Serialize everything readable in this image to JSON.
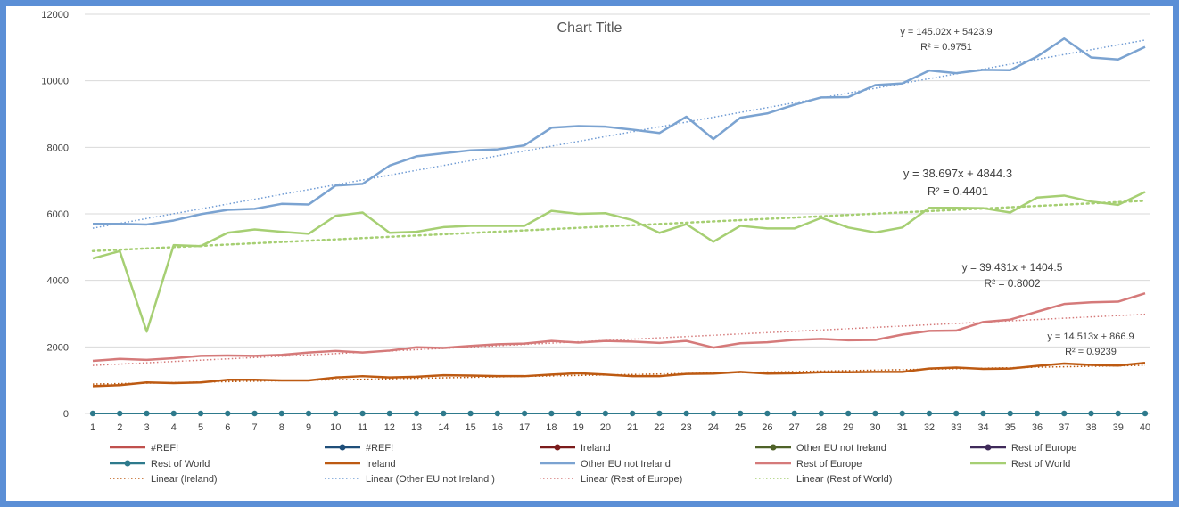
{
  "chart_data": {
    "type": "line",
    "title": "Chart Title",
    "xlabel": "",
    "ylabel": "",
    "x": [
      1,
      2,
      3,
      4,
      5,
      6,
      7,
      8,
      9,
      10,
      11,
      12,
      13,
      14,
      15,
      16,
      17,
      18,
      19,
      20,
      21,
      22,
      23,
      24,
      25,
      26,
      27,
      28,
      29,
      30,
      31,
      32,
      33,
      34,
      35,
      36,
      37,
      38,
      39,
      40
    ],
    "x_ticks": [
      "1",
      "2",
      "3",
      "4",
      "5",
      "6",
      "7",
      "8",
      "9",
      "10",
      "11",
      "12",
      "13",
      "14",
      "15",
      "16",
      "17",
      "18",
      "19",
      "20",
      "21",
      "22",
      "23",
      "24",
      "25",
      "26",
      "27",
      "28",
      "29",
      "30",
      "31",
      "32",
      "33",
      "34",
      "35",
      "36",
      "37",
      "38",
      "39",
      "40"
    ],
    "ylim": [
      0,
      12000
    ],
    "y_ticks": [
      "0",
      "2000",
      "4000",
      "6000",
      "8000",
      "10000",
      "12000"
    ],
    "grid": true,
    "legend_position": "bottom",
    "series": [
      {
        "name": "Other EU not Ireland",
        "color": "#7ba3d1",
        "marker": false,
        "width": 2.5,
        "values": [
          5700,
          5700,
          5680,
          5800,
          5990,
          6120,
          6150,
          6300,
          6280,
          6850,
          6900,
          7450,
          7730,
          7820,
          7910,
          7940,
          8060,
          8590,
          8640,
          8620,
          8530,
          8430,
          8920,
          8250,
          8890,
          9020,
          9280,
          9500,
          9510,
          9870,
          9920,
          10310,
          10230,
          10330,
          10320,
          10730,
          11270,
          10700,
          10640,
          11020
        ]
      },
      {
        "name": "Rest of World",
        "color": "#a6cf73",
        "marker": false,
        "width": 2.5,
        "values": [
          4660,
          4880,
          2460,
          5060,
          5030,
          5430,
          5530,
          5460,
          5400,
          5940,
          6040,
          5430,
          5460,
          5600,
          5640,
          5640,
          5640,
          6090,
          6000,
          6020,
          5810,
          5430,
          5690,
          5160,
          5640,
          5560,
          5560,
          5880,
          5590,
          5440,
          5590,
          6180,
          6180,
          6170,
          6040,
          6490,
          6550,
          6370,
          6270,
          6660
        ]
      },
      {
        "name": "Rest of Europe",
        "color": "#d57a7a",
        "marker": false,
        "width": 2.5,
        "values": [
          1580,
          1640,
          1610,
          1660,
          1730,
          1740,
          1730,
          1760,
          1830,
          1880,
          1830,
          1890,
          1990,
          1970,
          2030,
          2080,
          2100,
          2180,
          2130,
          2180,
          2160,
          2120,
          2180,
          1980,
          2110,
          2140,
          2210,
          2240,
          2200,
          2210,
          2370,
          2480,
          2490,
          2750,
          2820,
          3060,
          3290,
          3340,
          3360,
          3610
        ]
      },
      {
        "name": "Ireland",
        "color": "#bd5a12",
        "marker": false,
        "width": 2.5,
        "values": [
          820,
          850,
          930,
          910,
          930,
          1010,
          1010,
          990,
          990,
          1080,
          1120,
          1080,
          1100,
          1150,
          1140,
          1120,
          1120,
          1170,
          1210,
          1170,
          1120,
          1120,
          1190,
          1200,
          1250,
          1200,
          1210,
          1240,
          1240,
          1250,
          1250,
          1350,
          1380,
          1340,
          1350,
          1430,
          1500,
          1460,
          1440,
          1520
        ]
      },
      {
        "name": "Rest of World",
        "color": "#2e7a8c",
        "marker": true,
        "width": 2,
        "values": [
          0,
          0,
          0,
          0,
          0,
          0,
          0,
          0,
          0,
          0,
          0,
          0,
          0,
          0,
          0,
          0,
          0,
          0,
          0,
          0,
          0,
          0,
          0,
          0,
          0,
          0,
          0,
          0,
          0,
          0,
          0,
          0,
          0,
          0,
          0,
          0,
          0,
          0,
          0,
          0
        ]
      }
    ],
    "trendlines": [
      {
        "name": "Linear (Other EU not Ireland )",
        "color": "#6f9bd4",
        "style": "dotted",
        "slope": 145.02,
        "intercept": 5423.9,
        "equation": "y = 145.02x + 5423.9",
        "r2": "R² = 0.9751"
      },
      {
        "name": "Linear (Rest of World)",
        "color": "#a6cf73",
        "style": "dotted-heavy",
        "slope": 38.697,
        "intercept": 4844.3,
        "equation": "y = 38.697x + 4844.3",
        "r2": "R² = 0.4401"
      },
      {
        "name": "Linear (Rest of Europe)",
        "color": "#d57a7a",
        "style": "dotted",
        "slope": 39.431,
        "intercept": 1404.5,
        "equation": "y = 39.431x + 1404.5",
        "r2": "R² = 0.8002"
      },
      {
        "name": "Linear (Ireland)",
        "color": "#bd5a12",
        "style": "dotted",
        "slope": 14.513,
        "intercept": 866.9,
        "equation": "y = 14.513x + 866.9",
        "r2": "R² = 0.9239"
      }
    ],
    "legend": [
      {
        "label": "#REF!",
        "color": "#c0504d",
        "kind": "line"
      },
      {
        "label": "#REF!",
        "color": "#1f4e79",
        "kind": "marker"
      },
      {
        "label": "Ireland",
        "color": "#7b1b1b",
        "kind": "marker"
      },
      {
        "label": "Other EU not Ireland",
        "color": "#4f6228",
        "kind": "marker"
      },
      {
        "label": "Rest of Europe",
        "color": "#3f2a5a",
        "kind": "marker"
      },
      {
        "label": "Rest of World",
        "color": "#2e7a8c",
        "kind": "marker"
      },
      {
        "label": "Ireland",
        "color": "#bd5a12",
        "kind": "line"
      },
      {
        "label": "Other EU not Ireland",
        "color": "#7ba3d1",
        "kind": "line"
      },
      {
        "label": "Rest of Europe",
        "color": "#d57a7a",
        "kind": "line"
      },
      {
        "label": "Rest of World",
        "color": "#a6cf73",
        "kind": "line"
      },
      {
        "label": "Linear (Ireland)",
        "color": "#bd5a12",
        "kind": "dotted"
      },
      {
        "label": "Linear (Other EU not Ireland )",
        "color": "#6f9bd4",
        "kind": "dotted"
      },
      {
        "label": "Linear (Rest of Europe)",
        "color": "#d57a7a",
        "kind": "dotted"
      },
      {
        "label": "Linear (Rest of World)",
        "color": "#a6cf73",
        "kind": "dotted"
      }
    ]
  }
}
